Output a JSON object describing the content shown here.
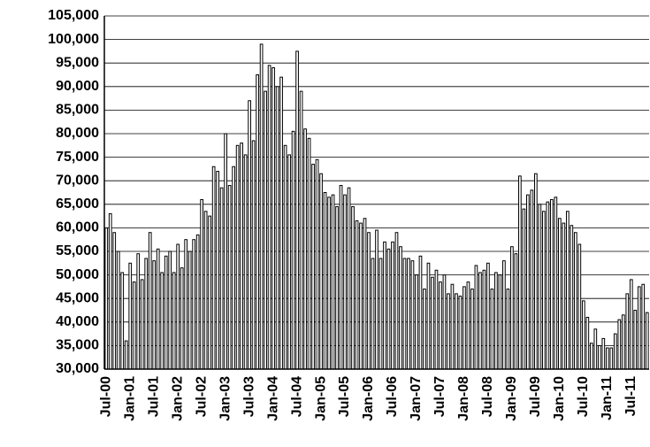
{
  "chart_data": {
    "type": "bar",
    "color": "#ffffff",
    "grid": true,
    "categories": [
      "Jul-00",
      null,
      null,
      null,
      null,
      null,
      "Jan-01",
      null,
      null,
      null,
      null,
      null,
      "Jul-01",
      null,
      null,
      null,
      null,
      null,
      "Jan-02",
      null,
      null,
      null,
      null,
      null,
      "Jul-02",
      null,
      null,
      null,
      null,
      null,
      "Jan-03",
      null,
      null,
      null,
      null,
      null,
      "Jul-03",
      null,
      null,
      null,
      null,
      null,
      "Jan-04",
      null,
      null,
      null,
      null,
      null,
      "Jul-04",
      null,
      null,
      null,
      null,
      null,
      "Jan-05",
      null,
      null,
      null,
      null,
      null,
      "Jul-05",
      null,
      null,
      null,
      null,
      null,
      "Jan-06",
      null,
      null,
      null,
      null,
      null,
      "Jul-06",
      null,
      null,
      null,
      null,
      null,
      "Jan-07",
      null,
      null,
      null,
      null,
      null,
      "Jul-07",
      null,
      null,
      null,
      null,
      null,
      "Jan-08",
      null,
      null,
      null,
      null,
      null,
      "Jul-08",
      null,
      null,
      null,
      null,
      null,
      "Jan-09",
      null,
      null,
      null,
      null,
      null,
      "Jul-09",
      null,
      null,
      null,
      null,
      null,
      "Jan-10",
      null,
      null,
      null,
      null,
      null,
      "Jul-10",
      null,
      null,
      null,
      null,
      null,
      "Jan-11",
      null,
      null,
      null,
      null,
      null,
      "Jul-11",
      null,
      null,
      null,
      null
    ],
    "values": [
      60000,
      63000,
      59000,
      55000,
      50500,
      36000,
      52500,
      48500,
      54500,
      49000,
      53500,
      59000,
      53000,
      55500,
      50500,
      54000,
      55000,
      50500,
      56500,
      51500,
      57500,
      55000,
      57500,
      58500,
      66000,
      63500,
      62500,
      73000,
      72000,
      68500,
      80000,
      69000,
      73000,
      77500,
      78000,
      75500,
      87000,
      78500,
      92500,
      99000,
      89000,
      94500,
      94000,
      90000,
      92000,
      77500,
      75500,
      80500,
      97500,
      89000,
      81000,
      79000,
      73500,
      74500,
      71500,
      67500,
      66500,
      67000,
      64500,
      69000,
      67000,
      68500,
      64500,
      61500,
      61000,
      62000,
      59000,
      53500,
      59500,
      53500,
      57000,
      55500,
      57000,
      59000,
      56000,
      53500,
      53500,
      53000,
      50000,
      54000,
      47000,
      52500,
      49500,
      51000,
      48500,
      50000,
      46000,
      48000,
      46000,
      45500,
      47500,
      48500,
      47000,
      52000,
      50500,
      51000,
      52500,
      47000,
      50500,
      50000,
      53000,
      47000,
      56000,
      54500,
      71000,
      64000,
      67000,
      68000,
      71500,
      65000,
      63500,
      65500,
      66000,
      66500,
      62000,
      61000,
      63500,
      60500,
      59000,
      56500,
      44500,
      41000,
      35500,
      38500,
      35000,
      36500,
      34500,
      34500,
      37500,
      40500,
      41500,
      46000,
      49000,
      42500,
      47500,
      48000,
      42000
    ],
    "ylim": [
      30000,
      105000
    ],
    "yticks": [
      {
        "value": 30000,
        "label": "30,000"
      },
      {
        "value": 35000,
        "label": "35,000"
      },
      {
        "value": 40000,
        "label": "40,000"
      },
      {
        "value": 45000,
        "label": "45,000"
      },
      {
        "value": 50000,
        "label": "50,000"
      },
      {
        "value": 55000,
        "label": "55,000"
      },
      {
        "value": 60000,
        "label": "60,000"
      },
      {
        "value": 65000,
        "label": "65,000"
      },
      {
        "value": 70000,
        "label": "70,000"
      },
      {
        "value": 75000,
        "label": "75,000"
      },
      {
        "value": 80000,
        "label": "80,000"
      },
      {
        "value": 85000,
        "label": "85,000"
      },
      {
        "value": 90000,
        "label": "90,000"
      },
      {
        "value": 95000,
        "label": "95,000"
      },
      {
        "value": 100000,
        "label": "100,000"
      },
      {
        "value": 105000,
        "label": "105,000"
      }
    ]
  }
}
